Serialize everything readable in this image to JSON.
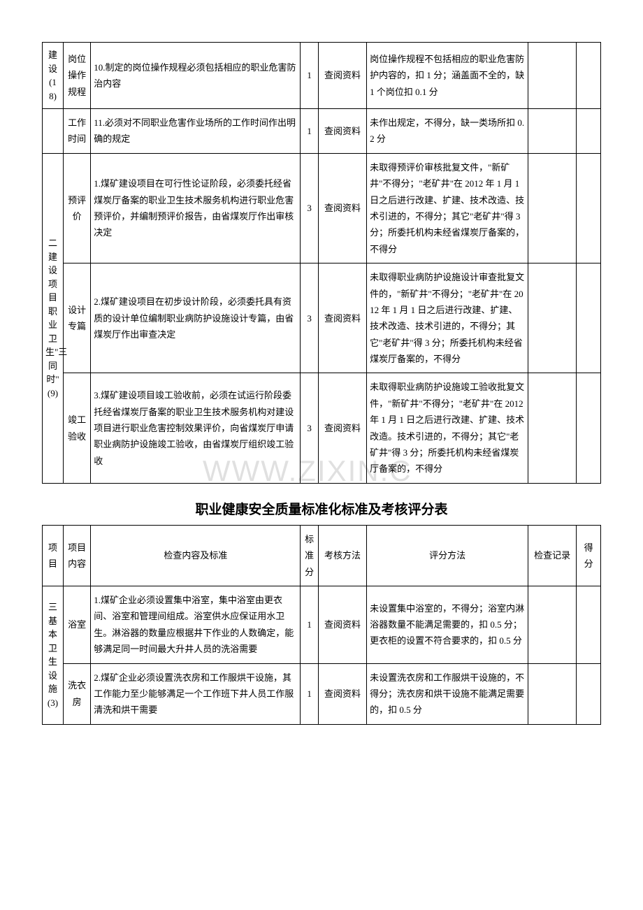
{
  "watermark": "WWW.ZIXIN.C",
  "table1": {
    "rows": [
      {
        "proj": "建设(18)",
        "sub": "岗位操作规程",
        "content": "10.制定的岗位操作规程必须包括相应的职业危害防治内容",
        "score": "1",
        "method": "查阅资料",
        "eval": "岗位操作规程不包括相应的职业危害防护内容的，扣 1 分；涵盖面不全的，缺 1 个岗位扣 0.1 分"
      },
      {
        "sub": "工作时间",
        "content": "11.必须对不同职业危害作业场所的工作时间作出明确的规定",
        "score": "1",
        "method": "查阅资料",
        "eval": "未作出规定，不得分，缺一类场所扣 0.2 分"
      },
      {
        "proj": "二建设项目职业卫生\"三同时\"(9)",
        "sub": "预评价",
        "content": "1.煤矿建设项目在可行性论证阶段，必须委托经省煤炭厅备案的职业卫生技术服务机构进行职业危害预评价，并编制预评价报告，由省煤炭厅作出审核决定",
        "score": "3",
        "method": "查阅资料",
        "eval": "未取得预评价审核批复文件，\"新矿井\"不得分；\"老矿井\"在 2012 年 1 月 1 日之后进行改建、扩建、技术改造、技术引进的，不得分；其它\"老矿井\"得 3 分；所委托机构未经省煤炭厅备案的，不得分"
      },
      {
        "sub": "设计专篇",
        "content": "2.煤矿建设项目在初步设计阶段，必须委托具有资质的设计单位编制职业病防护设施设计专篇，由省煤炭厅作出审查决定",
        "score": "3",
        "method": "查阅资料",
        "eval": "未取得职业病防护设施设计审查批复文件的，\"新矿井\"不得分；\"老矿井\"在 2012 年 1 月 1 日之后进行改建、扩建、技术改造、技术引进的，不得分；其它\"老矿井\"得 3 分；所委托机构未经省煤炭厅备案的，不得分"
      },
      {
        "sub": "竣工验收",
        "content": "3.煤矿建设项目竣工验收前，必须在试运行阶段委托经省煤炭厅备案的职业卫生技术服务机构对建设项目进行职业危害控制效果评价，向省煤炭厅申请职业病防护设施竣工验收，由省煤炭厅组织竣工验收",
        "score": "3",
        "method": "查阅资料",
        "eval": "未取得职业病防护设施竣工验收批复文件，\"新矿井\"不得分；\"老矿井\"在 2012 年 1 月 1 日之后进行改建、扩建、技术改造。技术引进的，不得分；其它\"老矿井\"得 3 分；所委托机构未经省煤炭厅备案的，不得分"
      }
    ]
  },
  "title2": "职业健康安全质量标准化标准及考核评分表",
  "header2": {
    "proj": "项目",
    "sub": "项目内容",
    "content": "检查内容及标准",
    "score": "标准分",
    "method": "考核方法",
    "eval": "评分方法",
    "rec": "检查记录",
    "final": "得分"
  },
  "table2": {
    "rows": [
      {
        "proj": "三基本卫生设施(3)",
        "sub": "浴室",
        "content": "1.煤矿企业必须设置集中浴室，集中浴室由更衣间、浴室和管理间组成。浴室供水应保证用水卫生。淋浴器的数量应根据井下作业的人数确定，能够满足同一时间最大升井人员的洗浴需要",
        "score": "1",
        "method": "查阅资料",
        "eval": "未设置集中浴室的，不得分；浴室内淋浴器数量不能满足需要的，扣 0.5 分；更衣柜的设置不符合要求的，扣 0.5 分"
      },
      {
        "sub": "洗衣房",
        "content": "2.煤矿企业必须设置洗衣房和工作服烘干设施，其工作能力至少能够满足一个工作班下井人员工作服清洗和烘干需要",
        "score": "1",
        "method": "查阅资料",
        "eval": "未设置洗衣房和工作服烘干设施的，不得分；洗衣房和烘干设施不能满足需要的，扣 0.5 分"
      }
    ]
  }
}
